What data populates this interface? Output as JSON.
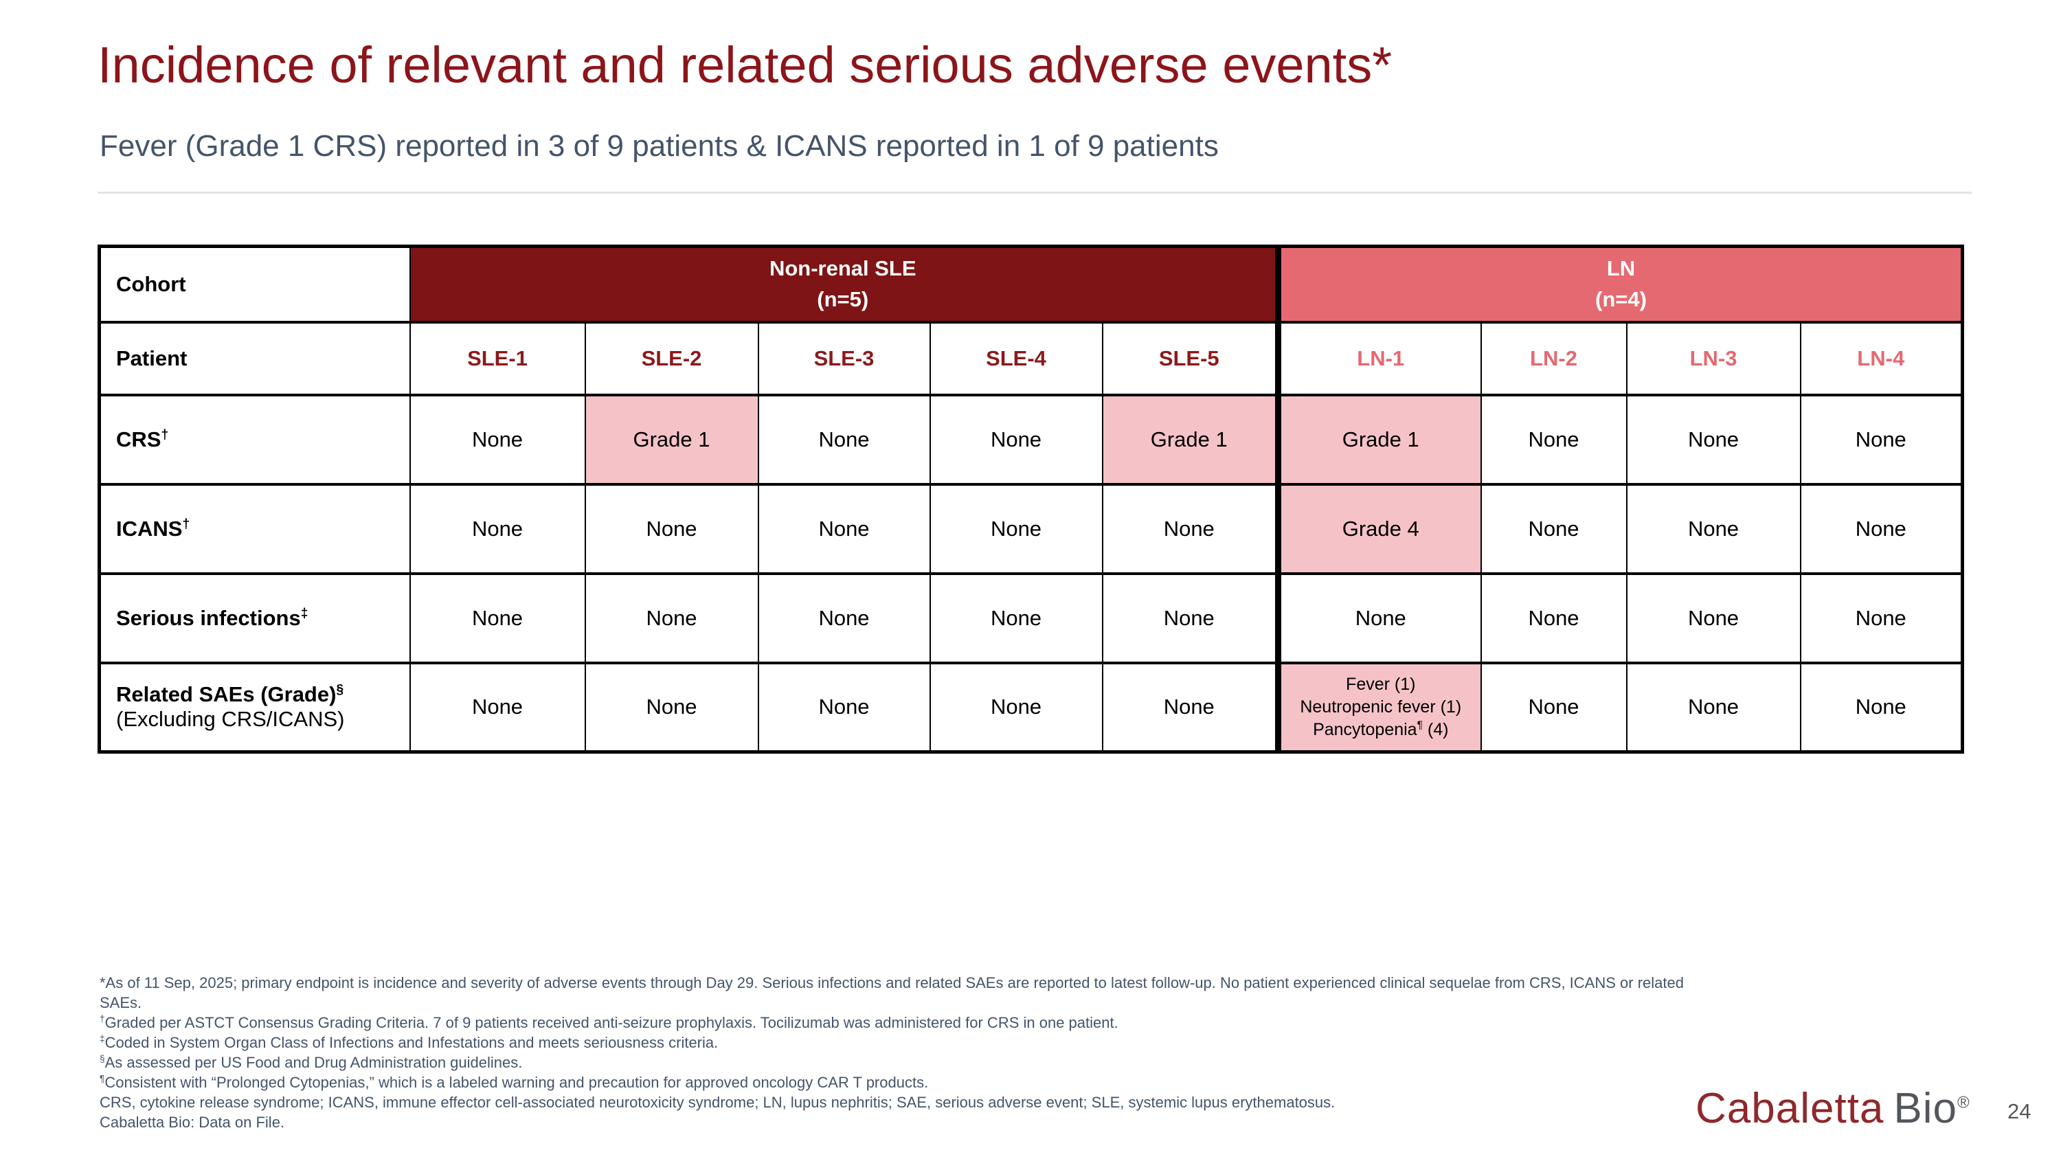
{
  "slide": {
    "title": "Incidence of relevant and related serious adverse events*",
    "subtitle": "Fever (Grade 1 CRS) reported in 3 of 9 patients & ICANS reported in 1 of 9 patients",
    "page_number": "24",
    "logo": {
      "word1": "Cabaletta",
      "word2": "Bio",
      "registered": "®"
    }
  },
  "colors": {
    "title_text": "#8C151A",
    "subtitle_text": "#44546A",
    "cohort_sle_bg": "#7E1416",
    "cohort_ln_bg": "#E56970",
    "highlight_bg": "#F5C3C7",
    "sle_patient_text": "#8B1A1C",
    "ln_patient_text": "#E56970",
    "footnote_text": "#44546A",
    "logo_cabaletta": "#8E282C",
    "logo_bio": "#53565A"
  },
  "table": {
    "corner_label": "Cohort",
    "patient_label": "Patient",
    "cohorts": [
      {
        "name": "Non-renal SLE",
        "n": "(n=5)",
        "patients": [
          "SLE-1",
          "SLE-2",
          "SLE-3",
          "SLE-4",
          "SLE-5"
        ]
      },
      {
        "name": "LN",
        "n": "(n=4)",
        "patients": [
          "LN-1",
          "LN-2",
          "LN-3",
          "LN-4"
        ]
      }
    ],
    "rows": [
      {
        "label": "CRS",
        "sup": "†",
        "cells": [
          "None",
          {
            "text": "Grade 1",
            "highlight": true
          },
          "None",
          "None",
          {
            "text": "Grade 1",
            "highlight": true
          },
          {
            "text": "Grade 1",
            "highlight": true
          },
          "None",
          "None",
          "None"
        ]
      },
      {
        "label": "ICANS",
        "sup": "†",
        "cells": [
          "None",
          "None",
          "None",
          "None",
          "None",
          {
            "text": "Grade 4",
            "highlight": true
          },
          "None",
          "None",
          "None"
        ]
      },
      {
        "label": "Serious infections",
        "sup": "‡",
        "cells": [
          "None",
          "None",
          "None",
          "None",
          "None",
          "None",
          "None",
          "None",
          "None"
        ]
      },
      {
        "label": "Related SAEs (Grade)",
        "sup": "§",
        "label_line2": "(Excluding CRS/ICANS)",
        "cells": [
          "None",
          "None",
          "None",
          "None",
          "None",
          {
            "highlight": true,
            "small": true,
            "lines": [
              {
                "text": "Fever (1)"
              },
              {
                "text": "Neutropenic fever (1)"
              },
              {
                "text": "Pancytopenia",
                "sup": "¶",
                "after": " (4)"
              }
            ]
          },
          "None",
          "None",
          "None"
        ]
      }
    ]
  },
  "footnotes": [
    {
      "text": "*As of 11 Sep, 2025; primary endpoint is incidence and severity of adverse events through Day 29. Serious infections and related SAEs are reported to latest follow-up. No patient experienced clinical sequelae from CRS, ICANS or related SAEs."
    },
    {
      "sup": "†",
      "text": "Graded per ASTCT Consensus Grading Criteria. 7 of 9 patients received anti-seizure prophylaxis. Tocilizumab was administered for CRS in one patient."
    },
    {
      "sup": "‡",
      "text": "Coded in System Organ Class of Infections and Infestations and meets seriousness criteria."
    },
    {
      "sup": "§",
      "text": "As assessed per US Food and Drug Administration guidelines."
    },
    {
      "sup": "¶",
      "text": "Consistent with “Prolonged Cytopenias,” which is a labeled warning and precaution for approved oncology CAR T products."
    },
    {
      "text": "CRS, cytokine release syndrome; ICANS, immune effector cell-associated neurotoxicity syndrome; LN, lupus nephritis; SAE, serious adverse event; SLE, systemic lupus erythematosus."
    },
    {
      "text": "Cabaletta Bio: Data on File."
    }
  ]
}
